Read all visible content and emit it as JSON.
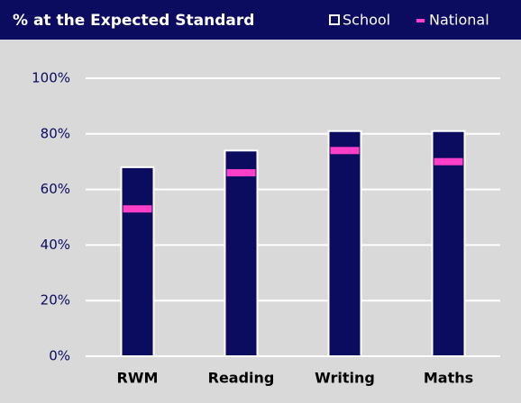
{
  "chart_data": {
    "type": "bar",
    "title": "% at the Expected Standard",
    "categories": [
      "RWM",
      "Reading",
      "Writing",
      "Maths"
    ],
    "series": [
      {
        "name": "School",
        "color": "#0b0b5f",
        "values": [
          68,
          74,
          81,
          81
        ]
      },
      {
        "name": "National",
        "color": "#ff3fc8",
        "style": "marker",
        "values": [
          53,
          66,
          74,
          70
        ]
      }
    ],
    "ylim": [
      0,
      100
    ],
    "yticks": [
      {
        "value": 0,
        "label": "0%"
      },
      {
        "value": 20,
        "label": "20%"
      },
      {
        "value": 40,
        "label": "40%"
      },
      {
        "value": 60,
        "label": "60%"
      },
      {
        "value": 80,
        "label": "80%"
      },
      {
        "value": 100,
        "label": "100%"
      }
    ],
    "grid": true
  }
}
